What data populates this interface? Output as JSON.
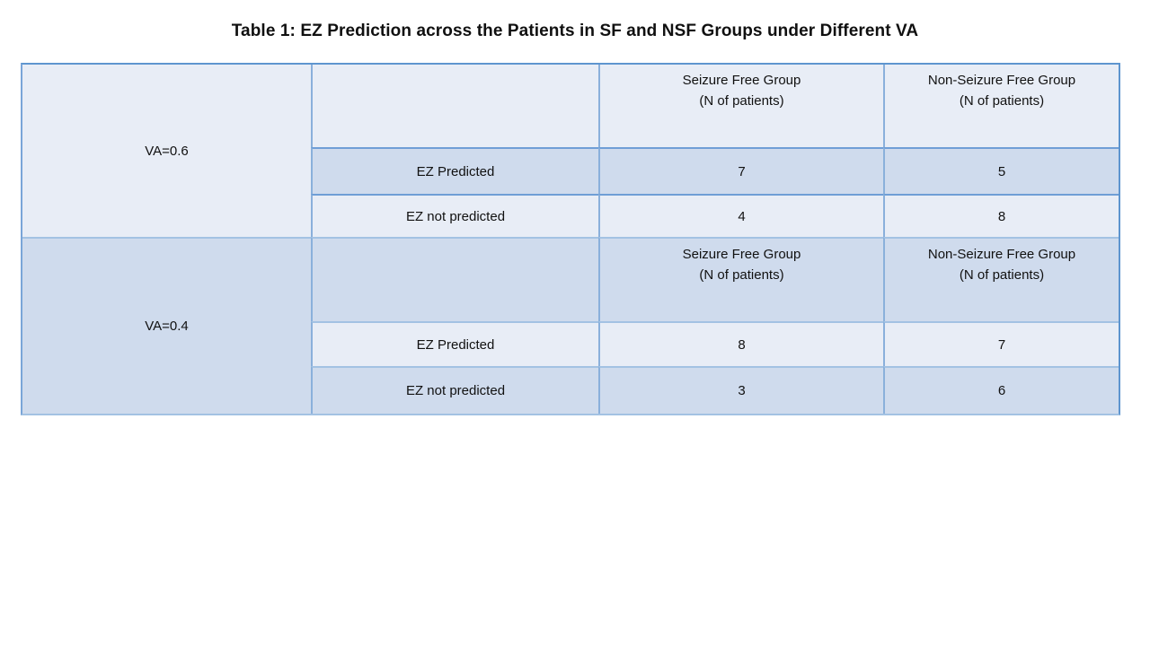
{
  "page": {
    "background": "#ffffff",
    "title": "Table 1: EZ Prediction across the Patients in SF and NSF Groups under Different VA"
  },
  "colors": {
    "band_light": "#e8edf6",
    "band_dark": "#cfdbed",
    "border_outer": "#5e95cf",
    "border_inner_vertical": "#8ab0db",
    "border_row_strong": "#6f9ed6",
    "border_row_light": "#a3c2e3",
    "text": "#111111"
  },
  "table": {
    "sections": [
      {
        "va_label": "VA=0.6",
        "headers": {
          "sf_line1": "Seizure Free Group",
          "sf_line2": "(N of patients)",
          "nsf_line1": "Non-Seizure Free Group",
          "nsf_line2": "(N of patients)"
        },
        "rows": [
          {
            "label": "EZ Predicted",
            "sf": "7",
            "nsf": "5"
          },
          {
            "label": "EZ not predicted",
            "sf": "4",
            "nsf": "8"
          }
        ]
      },
      {
        "va_label": "VA=0.4",
        "headers": {
          "sf_line1": "Seizure Free Group",
          "sf_line2": "(N of patients)",
          "nsf_line1": "Non-Seizure Free Group",
          "nsf_line2": "(N of patients)"
        },
        "rows": [
          {
            "label": "EZ Predicted",
            "sf": "8",
            "nsf": "7"
          },
          {
            "label": "EZ not predicted",
            "sf": "3",
            "nsf": "6"
          }
        ]
      }
    ]
  }
}
